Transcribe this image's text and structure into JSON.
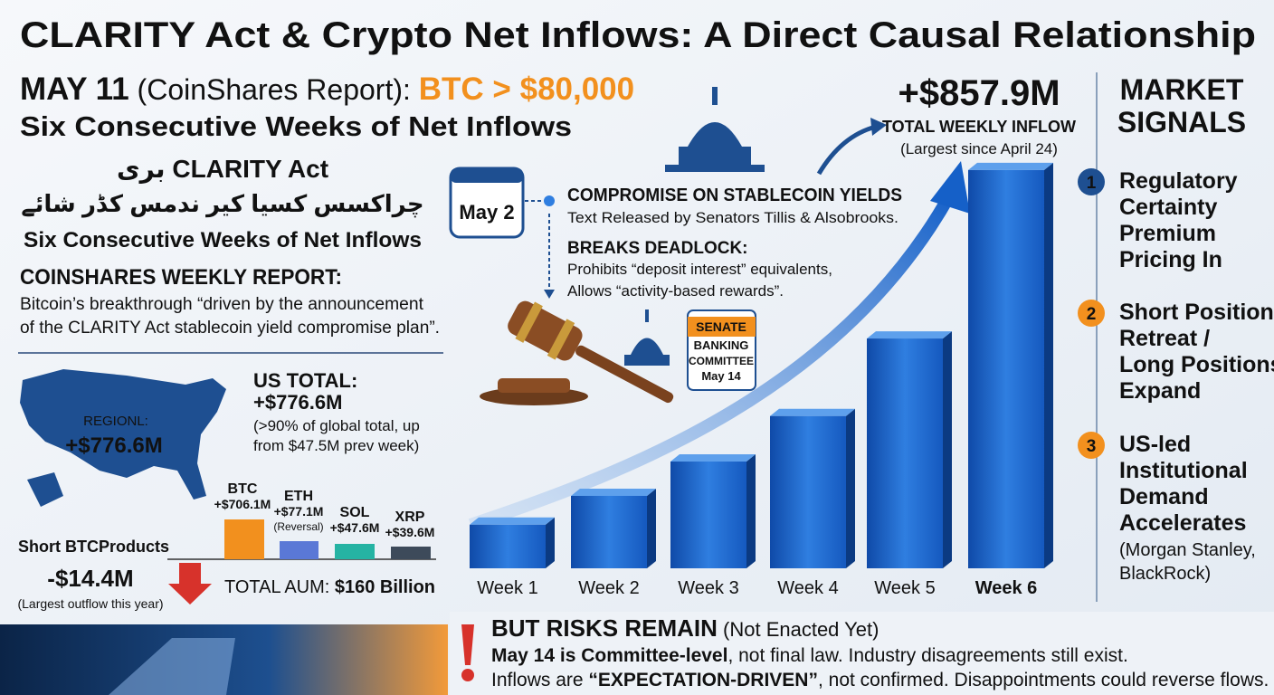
{
  "header": {
    "title": "CLARITY Act & Crypto Net Inflows: A Direct Causal Relationship",
    "date": "MAY 11",
    "source": " (CoinShares Report): ",
    "price": "BTC > $80,000",
    "subtitle": "Six Consecutive Weeks of Net Inflows"
  },
  "local_summary": {
    "line1": "بری CLARITY Act",
    "line2": "چراکسس کسیا کیر ندمس کڈر شائے",
    "line3": "Six Consecutive Weeks of Net Inflows"
  },
  "report": {
    "heading": "COINSHARES WEEKLY REPORT:",
    "lines": [
      "Bitcoin’s breakthrough “driven by the announcement",
      "of the CLARITY Act stablecoin yield compromise plan”."
    ]
  },
  "us": {
    "map_label": "REGIONL:",
    "map_value": "+$776.6M",
    "heading": "US TOTAL:",
    "value": "+$776.6M",
    "notes": [
      "(>90% of global total, up",
      "from $47.5M prev week)"
    ]
  },
  "assets": [
    {
      "name": "BTC",
      "value": "+$706.1M"
    },
    {
      "name": "ETH",
      "value": "+$77.1M",
      "note": "(Reversal)"
    },
    {
      "name": "SOL",
      "value": "+$47.6M"
    },
    {
      "name": "XRP",
      "value": "+$39.6M"
    }
  ],
  "short": {
    "label": "Short BTCProducts",
    "value": "-$14.4M",
    "note": "(Largest outflow this year)"
  },
  "aum": {
    "label": "TOTAL AUM: ",
    "value": "$160 Billion"
  },
  "timeline": {
    "date": "May 2",
    "heading": "COMPROMISE ON STABLECOIN YIELDS",
    "detail": "Text Released by Senators Tillis & Alsobrooks.",
    "subheading": "BREAKS DEADLOCK:",
    "points": [
      "Prohibits “deposit interest” equivalents,",
      "Allows “activity-based rewards”."
    ]
  },
  "committee": {
    "lines": [
      "SENATE",
      "BANKING",
      "COMMITTEE",
      "May 14"
    ]
  },
  "weekly": {
    "headline": "+$857.9M",
    "caption": "TOTAL WEEKLY INFLOW",
    "note": "(Largest since April 24)",
    "categories": [
      "Week 1",
      "Week 2",
      "Week 3",
      "Week 4",
      "Week 5",
      "Week 6"
    ],
    "values": [
      94,
      156,
      230,
      328,
      495,
      857.9
    ]
  },
  "signals": {
    "heading": [
      "MARKET",
      "SIGNALS"
    ],
    "items": [
      {
        "number": "1",
        "lines": [
          "Regulatory",
          "Certainty",
          "Premium",
          "Pricing In"
        ]
      },
      {
        "number": "2",
        "lines": [
          "Short Positions",
          "Retreat /",
          "Long Positions",
          "Expand"
        ]
      },
      {
        "number": "3",
        "lines": [
          "US-led",
          "Institutional",
          "Demand",
          "Accelerates"
        ],
        "note": [
          "(Morgan Stanley,",
          "BlackRock)"
        ]
      }
    ]
  },
  "risks": {
    "heading": "BUT RISKS REMAIN",
    "qualifier": " (Not Enacted Yet)",
    "line1": [
      "May 14 is Committee-level",
      ", not final law. Industry disagreements still exist."
    ],
    "line2": [
      "Inflows are ",
      "“EXPECTATION-DRIVEN”",
      ", not confirmed. Disappointments could reverse flows."
    ]
  }
}
